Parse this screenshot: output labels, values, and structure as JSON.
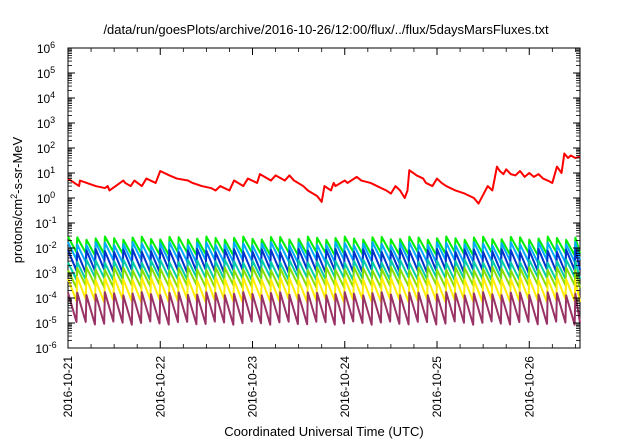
{
  "chart_data": {
    "type": "line",
    "title": "/data/run/goesPlots/archive/2016-10-26/12:00/flux/../flux/5daysMarsFluxes.txt",
    "xlabel": "Coordinated Universal Time (UTC)",
    "ylabel": "protons/cm2-s-sr-MeV",
    "ylabel_parts": [
      "protons/cm",
      "2",
      "-s-sr-MeV"
    ],
    "y_scale": "log",
    "ylim": [
      "1e-6",
      "1e6"
    ],
    "y_ticks": [
      {
        "base": "10",
        "exp": "6"
      },
      {
        "base": "10",
        "exp": "5"
      },
      {
        "base": "10",
        "exp": "4"
      },
      {
        "base": "10",
        "exp": "3"
      },
      {
        "base": "10",
        "exp": "2"
      },
      {
        "base": "10",
        "exp": "1"
      },
      {
        "base": "10",
        "exp": "0"
      },
      {
        "base": "10",
        "exp": "-1"
      },
      {
        "base": "10",
        "exp": "-2"
      },
      {
        "base": "10",
        "exp": "-3"
      },
      {
        "base": "10",
        "exp": "-4"
      },
      {
        "base": "10",
        "exp": "-5"
      },
      {
        "base": "10",
        "exp": "-6"
      }
    ],
    "x_ticks": [
      "2016-10-21",
      "2016-10-22",
      "2016-10-23",
      "2016-10-24",
      "2016-10-25",
      "2016-10-26"
    ],
    "x_range_days": [
      0,
      5.55
    ],
    "grid": false,
    "legend": "none",
    "series": [
      {
        "color": "#ff0000",
        "x": [
          0.0,
          0.12,
          0.13,
          0.3,
          0.4,
          0.43,
          0.45,
          0.6,
          0.62,
          0.68,
          0.72,
          0.8,
          0.85,
          0.95,
          1.0,
          1.1,
          1.18,
          1.3,
          1.35,
          1.45,
          1.55,
          1.6,
          1.65,
          1.75,
          1.8,
          1.9,
          1.95,
          2.05,
          2.08,
          2.2,
          2.25,
          2.35,
          2.4,
          2.45,
          2.55,
          2.6,
          2.7,
          2.75,
          2.78,
          2.85,
          2.88,
          2.9,
          3.0,
          3.03,
          3.13,
          3.18,
          3.28,
          3.35,
          3.45,
          3.5,
          3.55,
          3.6,
          3.65,
          3.68,
          3.7,
          3.78,
          3.85,
          3.88,
          3.95,
          4.0,
          4.05,
          4.1,
          4.2,
          4.3,
          4.4,
          4.45,
          4.55,
          4.6,
          4.65,
          4.68,
          4.72,
          4.75,
          4.8,
          4.85,
          4.9,
          4.95,
          5.0,
          5.05,
          5.1,
          5.15,
          5.2,
          5.25,
          5.3,
          5.35,
          5.38,
          5.42,
          5.45,
          5.5,
          5.55
        ],
        "y": [
          6,
          3,
          5,
          3,
          2.5,
          3,
          2,
          5,
          4,
          3,
          5,
          3,
          6,
          4,
          12,
          8,
          6,
          5,
          4,
          3,
          2.5,
          2,
          3,
          2,
          5,
          3,
          6,
          4,
          9,
          5,
          8,
          5,
          8,
          5,
          3,
          2,
          1.2,
          0.7,
          3,
          2,
          4,
          3,
          5,
          4,
          7,
          5,
          4,
          3,
          2,
          1.5,
          3,
          2,
          1,
          2,
          13,
          8,
          6,
          4,
          3,
          6,
          4,
          3,
          2,
          1.5,
          1,
          0.6,
          3,
          2,
          18,
          12,
          9,
          14,
          9,
          8,
          12,
          7,
          10,
          7,
          9,
          6,
          5,
          4,
          18,
          10,
          60,
          40,
          50,
          40,
          45
        ]
      },
      {
        "color": "#00ee00",
        "x": [
          0.0,
          5.55
        ],
        "y": [
          0.025,
          0.006
        ],
        "pattern": "sawtooth",
        "peak": 0.025,
        "trough": 0.006
      },
      {
        "color": "#00aaff",
        "x": [
          0.0,
          5.55
        ],
        "y": [
          0.015,
          0.003
        ],
        "pattern": "sawtooth",
        "peak": 0.015,
        "trough": 0.003
      },
      {
        "color": "#0033cc",
        "x": [
          0.0,
          5.55
        ],
        "y": [
          0.008,
          0.0012
        ],
        "pattern": "sawtooth",
        "peak": 0.008,
        "trough": 0.0012
      },
      {
        "color": "#00ccaa",
        "x": [
          0.0,
          5.55
        ],
        "y": [
          0.003,
          0.0006
        ],
        "pattern": "sawtooth",
        "peak": 0.003,
        "trough": 0.0006
      },
      {
        "color": "#88dd00",
        "x": [
          0.0,
          5.55
        ],
        "y": [
          0.0015,
          0.0003
        ],
        "pattern": "sawtooth",
        "peak": 0.0015,
        "trough": 0.0003
      },
      {
        "color": "#ffee00",
        "x": [
          0.0,
          5.55
        ],
        "y": [
          0.0006,
          8e-05
        ],
        "pattern": "sawtooth",
        "peak": 0.0006,
        "trough": 8e-05
      },
      {
        "color": "#993366",
        "x": [
          0.0,
          5.55
        ],
        "y": [
          0.00015,
          1e-05
        ],
        "pattern": "sawtooth",
        "peak": 0.00015,
        "trough": 1e-05
      }
    ]
  }
}
